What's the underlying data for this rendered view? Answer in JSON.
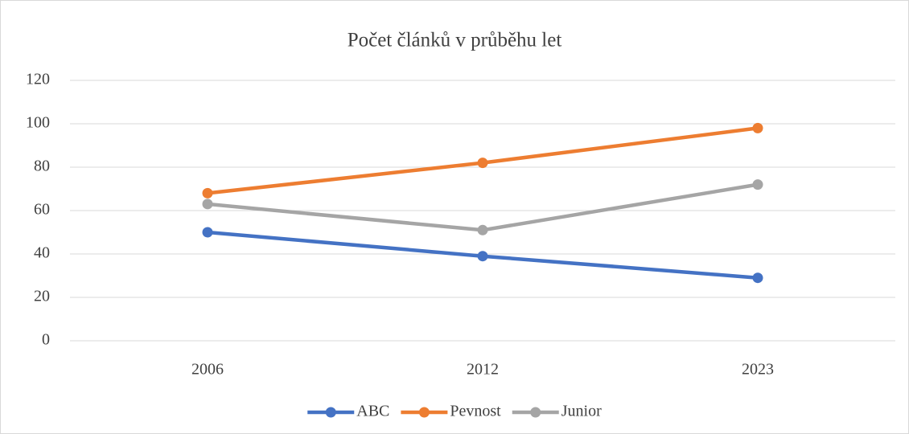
{
  "chart_data": {
    "type": "line",
    "title": "Počet článků v průběhu let",
    "categories": [
      "2006",
      "2012",
      "2023"
    ],
    "series": [
      {
        "name": "ABC",
        "color": "#4472c4",
        "values": [
          50,
          39,
          29
        ]
      },
      {
        "name": "Pevnost",
        "color": "#ed7d31",
        "values": [
          68,
          82,
          98
        ]
      },
      {
        "name": "Junior",
        "color": "#a5a5a5",
        "values": [
          63,
          51,
          72
        ]
      }
    ],
    "ylim": [
      0,
      120
    ],
    "yticks": [
      0,
      20,
      40,
      60,
      80,
      100,
      120
    ],
    "grid": true,
    "legend": "bottom"
  }
}
